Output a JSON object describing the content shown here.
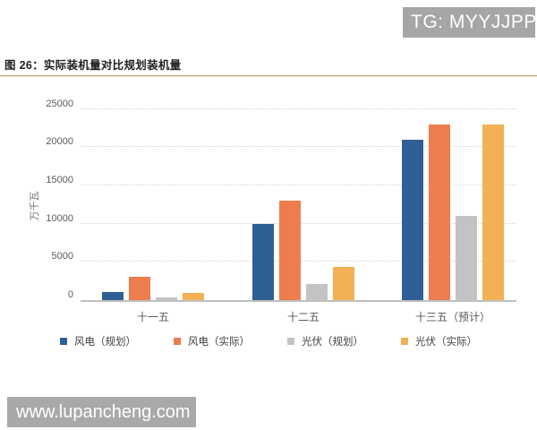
{
  "badge": {
    "text": "TG: MYYJJPP",
    "bg": "#a6a6a6"
  },
  "figure_title": "图 26：实际装机量对比规划装机量",
  "watermark": {
    "text": "www.lupancheng.com",
    "bg": "#a9a9a9"
  },
  "colors": {
    "rule": "#c3a36c",
    "axis_line": "#bfbfbf",
    "gridline": "#d4d4d4",
    "tick_text": "#595959"
  },
  "chart_data": {
    "type": "bar",
    "title": "图 26：实际装机量对比规划装机量",
    "xlabel": "",
    "ylabel": "万千瓦",
    "categories": [
      "十一五",
      "十二五",
      "十三五（预计）"
    ],
    "series": [
      {
        "name": "风电（规划）",
        "color": "#2e6096",
        "values": [
          1000,
          10000,
          21000
        ]
      },
      {
        "name": "风电（实际）",
        "color": "#ed7d4e",
        "values": [
          3100,
          13000,
          23000
        ]
      },
      {
        "name": "光伏（规划）",
        "color": "#c3c3c6",
        "values": [
          400,
          2100,
          11000
        ]
      },
      {
        "name": "光伏（实际）",
        "color": "#f4b054",
        "values": [
          900,
          4300,
          23000
        ]
      }
    ],
    "ylim": [
      0,
      25000
    ],
    "yticks": [
      0,
      5000,
      10000,
      15000,
      20000,
      25000
    ],
    "grid": "horizontal-dotted",
    "legend_position": "bottom"
  }
}
